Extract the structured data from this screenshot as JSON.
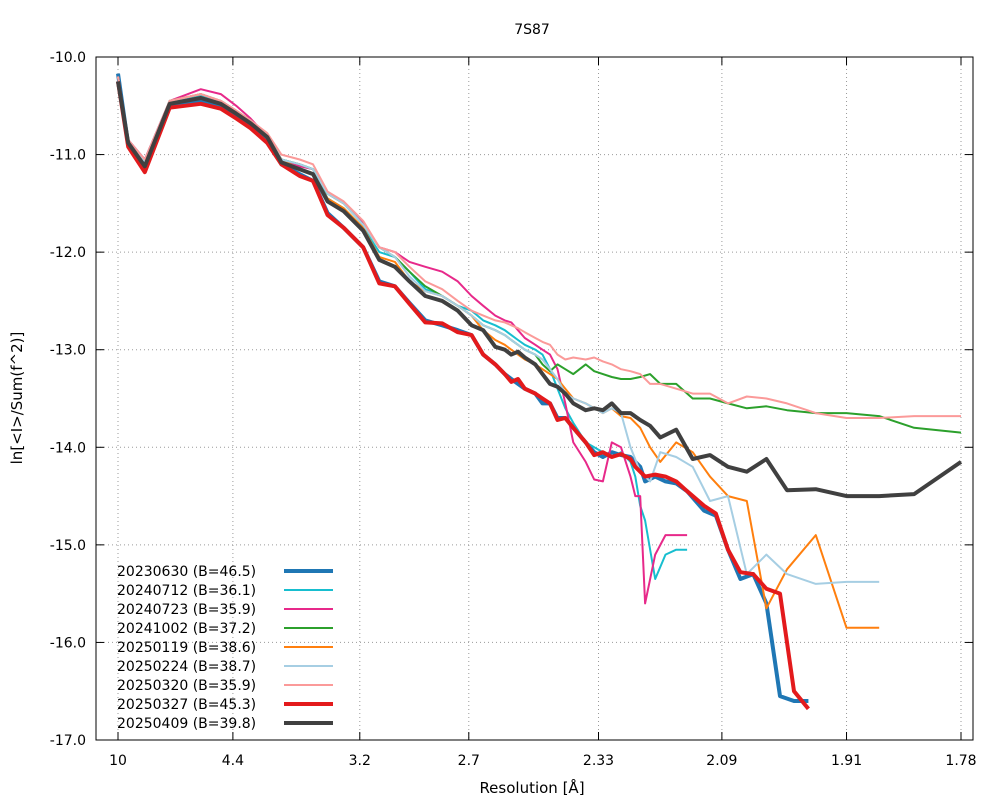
{
  "chart_data": {
    "type": "line",
    "title": "7S87",
    "xlabel": "Resolution [Å]",
    "ylabel": "ln[<I>/Sum(f^2)]",
    "x_scale": "inverse-square (x = 1/d^2)",
    "xlim_resolution": [
      10,
      1.78
    ],
    "ylim": [
      -17.0,
      -10.0
    ],
    "y_ticks": [
      -10.0,
      -11.0,
      -12.0,
      -13.0,
      -14.0,
      -15.0,
      -16.0,
      -17.0
    ],
    "y_tick_labels": [
      "-10.0",
      "-11.0",
      "-12.0",
      "-13.0",
      "-14.0",
      "-15.0",
      "-16.0",
      "-17.0"
    ],
    "x_ticks": [
      10,
      4.4,
      3.2,
      2.7,
      2.33,
      2.09,
      1.91,
      1.78
    ],
    "x_tick_labels": [
      "10",
      "4.4",
      "3.2",
      "2.7",
      "2.33",
      "2.09",
      "1.91",
      "1.78"
    ],
    "grid": true,
    "legend_position": "bottom-left",
    "series": [
      {
        "name": "20230630 (B=46.5)",
        "color": "#1f77b4",
        "width": 4,
        "d": [
          10.0,
          8.54,
          7.12,
          5.9,
          5.0,
          4.6,
          4.35,
          4.15,
          3.95,
          3.8,
          3.63,
          3.52,
          3.41,
          3.3,
          3.18,
          3.09,
          3.01,
          2.94,
          2.87,
          2.8,
          2.74,
          2.69,
          2.65,
          2.61,
          2.58,
          2.56,
          2.54,
          2.52,
          2.49,
          2.47,
          2.45,
          2.43,
          2.41,
          2.39,
          2.36,
          2.34,
          2.32,
          2.3,
          2.28,
          2.26,
          2.25,
          2.24,
          2.23,
          2.21,
          2.19,
          2.17,
          2.15,
          2.12,
          2.1,
          2.08,
          2.06,
          2.04,
          2.02,
          2.0,
          1.98,
          1.96
        ],
        "y": [
          -10.17,
          -10.9,
          -11.15,
          -10.5,
          -10.45,
          -10.5,
          -10.6,
          -10.7,
          -10.85,
          -11.1,
          -11.2,
          -11.27,
          -11.6,
          -11.75,
          -11.95,
          -12.3,
          -12.35,
          -12.52,
          -12.7,
          -12.75,
          -12.8,
          -12.85,
          -13.05,
          -13.15,
          -13.25,
          -13.3,
          -13.35,
          -13.4,
          -13.45,
          -13.55,
          -13.55,
          -13.7,
          -13.7,
          -13.8,
          -13.95,
          -14.05,
          -14.1,
          -14.05,
          -14.08,
          -14.1,
          -14.15,
          -14.2,
          -14.35,
          -14.3,
          -14.35,
          -14.37,
          -14.45,
          -14.65,
          -14.7,
          -15.05,
          -15.35,
          -15.3,
          -15.6,
          -16.55,
          -16.6,
          -16.6
        ]
      },
      {
        "name": "20240712 (B=36.1)",
        "color": "#17becf",
        "width": 2,
        "d": [
          10.0,
          8.54,
          7.12,
          5.9,
          5.0,
          4.6,
          4.35,
          4.15,
          3.95,
          3.8,
          3.63,
          3.52,
          3.41,
          3.3,
          3.18,
          3.09,
          3.01,
          2.94,
          2.87,
          2.8,
          2.74,
          2.69,
          2.65,
          2.61,
          2.58,
          2.56,
          2.54,
          2.52,
          2.49,
          2.47,
          2.45,
          2.43,
          2.41,
          2.39,
          2.36,
          2.34,
          2.32,
          2.3,
          2.28,
          2.26,
          2.25,
          2.24,
          2.23,
          2.21,
          2.19,
          2.17,
          2.15
        ],
        "y": [
          -10.2,
          -10.85,
          -11.05,
          -10.45,
          -10.4,
          -10.45,
          -10.55,
          -10.65,
          -10.8,
          -11.05,
          -11.1,
          -11.15,
          -11.45,
          -11.55,
          -11.75,
          -12.0,
          -12.05,
          -12.2,
          -12.38,
          -12.45,
          -12.55,
          -12.6,
          -12.7,
          -12.75,
          -12.8,
          -12.85,
          -12.9,
          -12.95,
          -13.0,
          -13.05,
          -13.2,
          -13.4,
          -13.6,
          -13.75,
          -13.95,
          -14.0,
          -14.05,
          -14.1,
          -14.05,
          -14.15,
          -14.3,
          -14.6,
          -14.75,
          -15.35,
          -15.1,
          -15.05,
          -15.05
        ]
      },
      {
        "name": "20240723 (B=35.9)",
        "color": "#e7298a",
        "width": 2,
        "d": [
          10.0,
          8.54,
          7.12,
          5.9,
          5.0,
          4.6,
          4.35,
          4.15,
          3.95,
          3.8,
          3.63,
          3.52,
          3.41,
          3.3,
          3.18,
          3.09,
          3.01,
          2.94,
          2.87,
          2.8,
          2.74,
          2.69,
          2.65,
          2.61,
          2.58,
          2.56,
          2.54,
          2.52,
          2.49,
          2.47,
          2.45,
          2.43,
          2.41,
          2.39,
          2.36,
          2.34,
          2.32,
          2.3,
          2.28,
          2.26,
          2.25,
          2.24,
          2.23,
          2.21,
          2.19,
          2.17,
          2.15
        ],
        "y": [
          -10.2,
          -10.85,
          -11.05,
          -10.45,
          -10.33,
          -10.38,
          -10.5,
          -10.63,
          -10.82,
          -11.05,
          -11.12,
          -11.15,
          -11.4,
          -11.5,
          -11.7,
          -11.95,
          -12.0,
          -12.1,
          -12.15,
          -12.2,
          -12.3,
          -12.45,
          -12.55,
          -12.65,
          -12.7,
          -12.72,
          -12.8,
          -12.88,
          -12.95,
          -13.0,
          -13.05,
          -13.2,
          -13.55,
          -13.95,
          -14.15,
          -14.33,
          -14.35,
          -13.95,
          -14.0,
          -14.3,
          -14.5,
          -14.5,
          -15.6,
          -15.1,
          -14.9,
          -14.9,
          -14.9
        ]
      },
      {
        "name": "20241002 (B=37.2)",
        "color": "#2ca02c",
        "width": 2,
        "d": [
          10.0,
          8.54,
          7.12,
          5.9,
          5.0,
          4.6,
          4.35,
          4.15,
          3.95,
          3.8,
          3.63,
          3.52,
          3.41,
          3.3,
          3.18,
          3.09,
          3.01,
          2.94,
          2.87,
          2.8,
          2.74,
          2.69,
          2.65,
          2.61,
          2.58,
          2.56,
          2.54,
          2.52,
          2.49,
          2.47,
          2.45,
          2.43,
          2.41,
          2.39,
          2.36,
          2.34,
          2.32,
          2.3,
          2.28,
          2.26,
          2.24,
          2.22,
          2.2,
          2.17,
          2.14,
          2.11,
          2.08,
          2.05,
          2.02,
          1.99,
          1.95,
          1.91,
          1.87,
          1.83,
          1.78
        ],
        "y": [
          -10.2,
          -10.85,
          -11.08,
          -10.45,
          -10.38,
          -10.45,
          -10.55,
          -10.65,
          -10.8,
          -11.05,
          -11.1,
          -11.15,
          -11.4,
          -11.5,
          -11.72,
          -11.95,
          -12.05,
          -12.2,
          -12.35,
          -12.45,
          -12.55,
          -12.65,
          -12.75,
          -12.8,
          -12.85,
          -12.9,
          -12.95,
          -13.0,
          -13.05,
          -13.15,
          -13.22,
          -13.15,
          -13.2,
          -13.25,
          -13.15,
          -13.22,
          -13.25,
          -13.28,
          -13.3,
          -13.3,
          -13.28,
          -13.25,
          -13.35,
          -13.35,
          -13.5,
          -13.5,
          -13.55,
          -13.6,
          -13.58,
          -13.62,
          -13.65,
          -13.65,
          -13.68,
          -13.8,
          -13.85
        ]
      },
      {
        "name": "20250119 (B=38.6)",
        "color": "#ff7f0e",
        "width": 2,
        "d": [
          10.0,
          8.54,
          7.12,
          5.9,
          5.0,
          4.6,
          4.35,
          4.15,
          3.95,
          3.8,
          3.63,
          3.52,
          3.41,
          3.3,
          3.18,
          3.09,
          3.01,
          2.94,
          2.87,
          2.8,
          2.74,
          2.69,
          2.65,
          2.61,
          2.58,
          2.56,
          2.54,
          2.52,
          2.49,
          2.47,
          2.45,
          2.43,
          2.41,
          2.39,
          2.36,
          2.34,
          2.32,
          2.3,
          2.28,
          2.26,
          2.24,
          2.22,
          2.2,
          2.17,
          2.14,
          2.11,
          2.08,
          2.05,
          2.02,
          1.99,
          1.95,
          1.91,
          1.87
        ],
        "y": [
          -10.2,
          -10.85,
          -11.08,
          -10.45,
          -10.38,
          -10.45,
          -10.55,
          -10.65,
          -10.8,
          -11.05,
          -11.15,
          -11.2,
          -11.45,
          -11.55,
          -11.75,
          -12.05,
          -12.1,
          -12.3,
          -12.4,
          -12.45,
          -12.55,
          -12.65,
          -12.8,
          -12.9,
          -12.95,
          -13.0,
          -13.05,
          -13.1,
          -13.15,
          -13.2,
          -13.25,
          -13.3,
          -13.4,
          -13.5,
          -13.55,
          -13.6,
          -13.65,
          -13.6,
          -13.68,
          -13.7,
          -13.8,
          -14.0,
          -14.15,
          -13.95,
          -14.05,
          -14.3,
          -14.5,
          -14.55,
          -15.65,
          -15.25,
          -14.9,
          -15.85,
          -15.85
        ]
      },
      {
        "name": "20250224 (B=38.7)",
        "color": "#a6cee3",
        "width": 2,
        "d": [
          10.0,
          8.54,
          7.12,
          5.9,
          5.0,
          4.6,
          4.35,
          4.15,
          3.95,
          3.8,
          3.63,
          3.52,
          3.41,
          3.3,
          3.18,
          3.09,
          3.01,
          2.94,
          2.87,
          2.8,
          2.74,
          2.69,
          2.65,
          2.61,
          2.58,
          2.56,
          2.54,
          2.52,
          2.49,
          2.47,
          2.45,
          2.43,
          2.41,
          2.39,
          2.36,
          2.34,
          2.32,
          2.3,
          2.28,
          2.26,
          2.24,
          2.22,
          2.2,
          2.17,
          2.14,
          2.11,
          2.08,
          2.05,
          2.02,
          1.99,
          1.95,
          1.91,
          1.87
        ],
        "y": [
          -10.2,
          -10.85,
          -11.08,
          -10.45,
          -10.38,
          -10.45,
          -10.55,
          -10.65,
          -10.8,
          -11.05,
          -11.1,
          -11.15,
          -11.4,
          -11.5,
          -11.72,
          -11.95,
          -12.05,
          -12.25,
          -12.4,
          -12.45,
          -12.55,
          -12.65,
          -12.75,
          -12.8,
          -12.85,
          -12.9,
          -12.95,
          -13.0,
          -13.05,
          -13.1,
          -13.2,
          -13.3,
          -13.45,
          -13.5,
          -13.55,
          -13.6,
          -13.65,
          -13.6,
          -13.65,
          -14.0,
          -14.25,
          -14.35,
          -14.05,
          -14.1,
          -14.2,
          -14.55,
          -14.5,
          -15.3,
          -15.1,
          -15.3,
          -15.4,
          -15.38,
          -15.38
        ]
      },
      {
        "name": "20250320 (B=35.9)",
        "color": "#fb9a99",
        "width": 2,
        "d": [
          10.0,
          8.54,
          7.12,
          5.9,
          5.0,
          4.6,
          4.35,
          4.15,
          3.95,
          3.8,
          3.63,
          3.52,
          3.41,
          3.3,
          3.18,
          3.09,
          3.01,
          2.94,
          2.87,
          2.8,
          2.74,
          2.69,
          2.65,
          2.61,
          2.58,
          2.56,
          2.54,
          2.52,
          2.49,
          2.47,
          2.45,
          2.43,
          2.41,
          2.39,
          2.36,
          2.34,
          2.32,
          2.3,
          2.28,
          2.26,
          2.24,
          2.22,
          2.2,
          2.17,
          2.14,
          2.11,
          2.08,
          2.05,
          2.02,
          1.99,
          1.95,
          1.91,
          1.87,
          1.83,
          1.78
        ],
        "y": [
          -10.2,
          -10.85,
          -11.05,
          -10.45,
          -10.38,
          -10.45,
          -10.55,
          -10.65,
          -10.78,
          -11.0,
          -11.05,
          -11.1,
          -11.38,
          -11.48,
          -11.68,
          -11.95,
          -12.0,
          -12.15,
          -12.3,
          -12.38,
          -12.5,
          -12.6,
          -12.65,
          -12.7,
          -12.72,
          -12.75,
          -12.78,
          -12.82,
          -12.88,
          -12.92,
          -12.95,
          -13.05,
          -13.1,
          -13.08,
          -13.1,
          -13.08,
          -13.12,
          -13.15,
          -13.2,
          -13.22,
          -13.25,
          -13.35,
          -13.35,
          -13.4,
          -13.45,
          -13.45,
          -13.55,
          -13.48,
          -13.5,
          -13.55,
          -13.65,
          -13.7,
          -13.7,
          -13.68,
          -13.68
        ]
      },
      {
        "name": "20250327 (B=45.3)",
        "color": "#e31a1c",
        "width": 4,
        "d": [
          10.0,
          8.54,
          7.12,
          5.9,
          5.0,
          4.6,
          4.35,
          4.15,
          3.95,
          3.8,
          3.63,
          3.52,
          3.41,
          3.3,
          3.18,
          3.09,
          3.01,
          2.94,
          2.87,
          2.8,
          2.74,
          2.69,
          2.65,
          2.61,
          2.58,
          2.56,
          2.54,
          2.52,
          2.49,
          2.47,
          2.45,
          2.43,
          2.41,
          2.39,
          2.36,
          2.34,
          2.32,
          2.3,
          2.28,
          2.26,
          2.25,
          2.24,
          2.23,
          2.21,
          2.19,
          2.17,
          2.15,
          2.12,
          2.1,
          2.08,
          2.06,
          2.04,
          2.02,
          2.0,
          1.98,
          1.96
        ],
        "y": [
          -10.25,
          -10.92,
          -11.18,
          -10.52,
          -10.48,
          -10.53,
          -10.63,
          -10.73,
          -10.88,
          -11.1,
          -11.22,
          -11.27,
          -11.62,
          -11.75,
          -11.95,
          -12.32,
          -12.35,
          -12.53,
          -12.72,
          -12.73,
          -12.82,
          -12.85,
          -13.05,
          -13.15,
          -13.25,
          -13.33,
          -13.3,
          -13.4,
          -13.45,
          -13.5,
          -13.55,
          -13.72,
          -13.7,
          -13.8,
          -13.95,
          -14.08,
          -14.05,
          -14.1,
          -14.07,
          -14.12,
          -14.2,
          -14.25,
          -14.3,
          -14.28,
          -14.3,
          -14.35,
          -14.45,
          -14.6,
          -14.68,
          -15.05,
          -15.28,
          -15.3,
          -15.45,
          -15.5,
          -16.5,
          -16.68
        ]
      },
      {
        "name": "20250409 (B=39.8)",
        "color": "#404040",
        "width": 4,
        "d": [
          10.0,
          8.54,
          7.12,
          5.9,
          5.0,
          4.6,
          4.35,
          4.15,
          3.95,
          3.8,
          3.63,
          3.52,
          3.41,
          3.3,
          3.18,
          3.09,
          3.01,
          2.94,
          2.87,
          2.8,
          2.74,
          2.69,
          2.65,
          2.61,
          2.58,
          2.56,
          2.54,
          2.52,
          2.49,
          2.47,
          2.45,
          2.43,
          2.41,
          2.39,
          2.36,
          2.34,
          2.32,
          2.3,
          2.28,
          2.26,
          2.24,
          2.22,
          2.2,
          2.17,
          2.14,
          2.11,
          2.08,
          2.05,
          2.02,
          1.99,
          1.95,
          1.91,
          1.87,
          1.83,
          1.78
        ],
        "y": [
          -10.25,
          -10.88,
          -11.12,
          -10.48,
          -10.42,
          -10.48,
          -10.58,
          -10.68,
          -10.82,
          -11.08,
          -11.15,
          -11.2,
          -11.48,
          -11.58,
          -11.78,
          -12.08,
          -12.15,
          -12.3,
          -12.45,
          -12.5,
          -12.6,
          -12.75,
          -12.8,
          -12.97,
          -13.0,
          -13.05,
          -13.02,
          -13.08,
          -13.15,
          -13.25,
          -13.35,
          -13.38,
          -13.45,
          -13.55,
          -13.62,
          -13.6,
          -13.62,
          -13.55,
          -13.65,
          -13.65,
          -13.72,
          -13.78,
          -13.9,
          -13.82,
          -14.12,
          -14.08,
          -14.2,
          -14.25,
          -14.12,
          -14.44,
          -14.43,
          -14.5,
          -14.5,
          -14.48,
          -14.15
        ]
      }
    ]
  }
}
